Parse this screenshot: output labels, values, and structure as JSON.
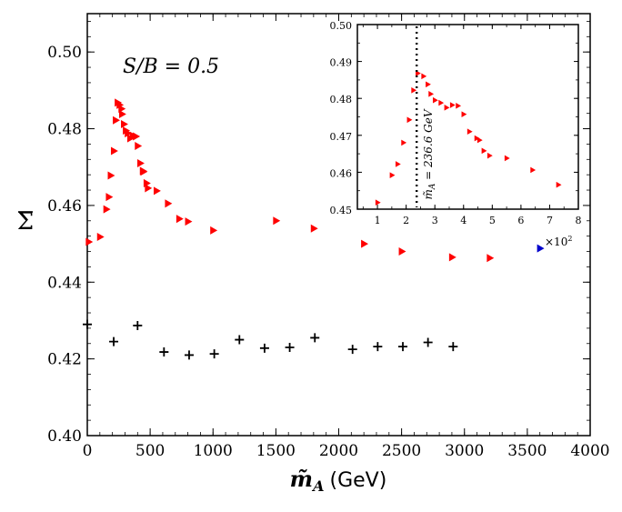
{
  "chart_data": [
    {
      "type": "scatter",
      "title": "",
      "xlabel": "m̃_A (GeV)",
      "xlabel_symbol": "m̃",
      "xlabel_subscript": "A",
      "xlabel_unit": "(GeV)",
      "ylabel": "Σ̄",
      "ylabel_symbol": "Σ",
      "annotation": "S/B = 0.5",
      "xlim": [
        0,
        4000
      ],
      "ylim": [
        0.4,
        0.51
      ],
      "x_ticks": [
        "0",
        "500",
        "1000",
        "1500",
        "2000",
        "2500",
        "3000",
        "3500",
        "4000"
      ],
      "y_ticks": [
        "0.40",
        "0.42",
        "0.44",
        "0.46",
        "0.48",
        "0.50"
      ],
      "colors": {
        "red": "#ff0000",
        "blue": "#0000cc",
        "black": "#000000"
      },
      "series": [
        {
          "name": "red-triangles",
          "marker": "triangle-right",
          "color": "#ff0000",
          "points": [
            [
              10,
              0.4505
            ],
            [
              100,
              0.4518
            ],
            [
              150,
              0.459
            ],
            [
              170,
              0.4622
            ],
            [
              185,
              0.4678
            ],
            [
              210,
              0.4742
            ],
            [
              225,
              0.4822
            ],
            [
              240,
              0.4868
            ],
            [
              255,
              0.4862
            ],
            [
              270,
              0.4852
            ],
            [
              275,
              0.4838
            ],
            [
              290,
              0.4812
            ],
            [
              305,
              0.4795
            ],
            [
              320,
              0.4788
            ],
            [
              340,
              0.4775
            ],
            [
              360,
              0.4782
            ],
            [
              385,
              0.478
            ],
            [
              400,
              0.4755
            ],
            [
              420,
              0.471
            ],
            [
              440,
              0.469
            ],
            [
              445,
              0.4688
            ],
            [
              470,
              0.4658
            ],
            [
              480,
              0.4645
            ],
            [
              550,
              0.4638
            ],
            [
              640,
              0.4605
            ],
            [
              730,
              0.4565
            ],
            [
              800,
              0.4558
            ],
            [
              1000,
              0.4535
            ],
            [
              1500,
              0.456
            ],
            [
              1800,
              0.454
            ],
            [
              2200,
              0.45
            ],
            [
              2500,
              0.448
            ],
            [
              2900,
              0.4465
            ],
            [
              3200,
              0.4463
            ]
          ]
        },
        {
          "name": "blue-triangle",
          "marker": "triangle-right",
          "color": "#0000cc",
          "points": [
            [
              3600,
              0.4488
            ]
          ]
        },
        {
          "name": "black-crosses",
          "marker": "plus",
          "color": "#000000",
          "points": [
            [
              0,
              0.429
            ],
            [
              210,
              0.4245
            ],
            [
              400,
              0.4287
            ],
            [
              610,
              0.4218
            ],
            [
              810,
              0.421
            ],
            [
              1010,
              0.4213
            ],
            [
              1210,
              0.425
            ],
            [
              1410,
              0.4228
            ],
            [
              1610,
              0.423
            ],
            [
              1810,
              0.4255
            ],
            [
              2110,
              0.4225
            ],
            [
              2310,
              0.4232
            ],
            [
              2510,
              0.4232
            ],
            [
              2710,
              0.4243
            ],
            [
              2910,
              0.4232
            ]
          ]
        }
      ]
    },
    {
      "type": "scatter",
      "title": "inset",
      "xlim": [
        0.3,
        8
      ],
      "ylim": [
        0.45,
        0.5
      ],
      "x_ticks": [
        "1",
        "2",
        "3",
        "4",
        "5",
        "6",
        "7",
        "8"
      ],
      "y_ticks": [
        "0.45",
        "0.46",
        "0.47",
        "0.48",
        "0.49",
        "0.50"
      ],
      "x_multiplier": "×10²",
      "x_multiplier_base": "×10",
      "x_multiplier_exp": "2",
      "vline_x": 2.366,
      "vline_label": "m̃_A = 236.6 GeV",
      "vline_label_symbol": "m̃",
      "vline_label_subscript": "A",
      "vline_label_value": " = 236.6 GeV",
      "series": [
        {
          "name": "red-triangles",
          "marker": "triangle-right",
          "color": "#ff0000",
          "points": [
            [
              1.0,
              0.4518
            ],
            [
              1.5,
              0.4592
            ],
            [
              1.7,
              0.4622
            ],
            [
              1.9,
              0.468
            ],
            [
              2.1,
              0.4742
            ],
            [
              2.25,
              0.4822
            ],
            [
              2.4,
              0.4868
            ],
            [
              2.6,
              0.486
            ],
            [
              2.75,
              0.4838
            ],
            [
              2.85,
              0.4812
            ],
            [
              3.0,
              0.4795
            ],
            [
              3.2,
              0.4788
            ],
            [
              3.4,
              0.4775
            ],
            [
              3.6,
              0.4782
            ],
            [
              3.8,
              0.478
            ],
            [
              4.0,
              0.4757
            ],
            [
              4.2,
              0.471
            ],
            [
              4.45,
              0.4692
            ],
            [
              4.55,
              0.4687
            ],
            [
              4.7,
              0.4658
            ],
            [
              4.9,
              0.4645
            ],
            [
              5.5,
              0.4638
            ],
            [
              6.4,
              0.4606
            ],
            [
              7.3,
              0.4566
            ]
          ]
        }
      ]
    }
  ]
}
